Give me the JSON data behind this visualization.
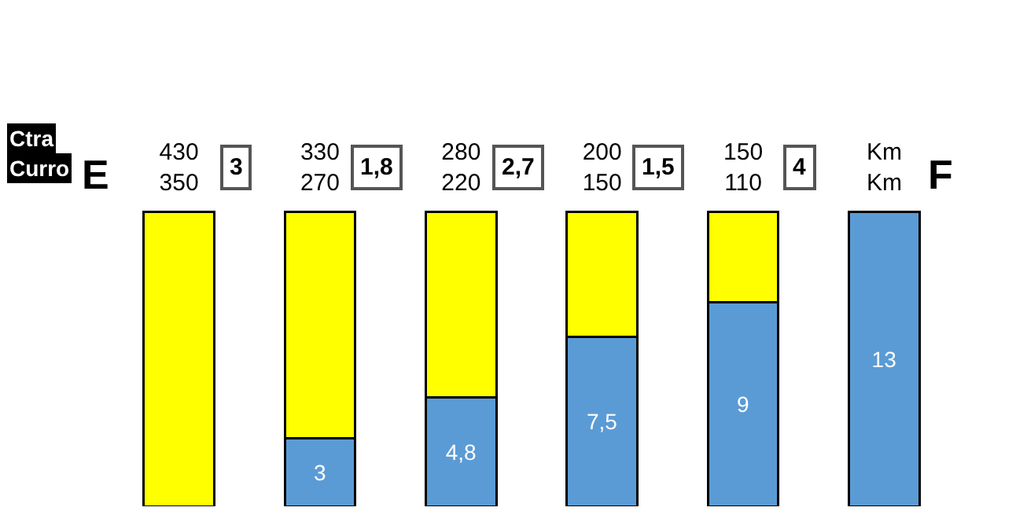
{
  "chart_data": {
    "type": "bar",
    "stacked": true,
    "data_labels": false,
    "legend": false,
    "categories": [
      "430\n350",
      "330\n270",
      "280\n220",
      "200\n150",
      "150\n110",
      "Km\nKm"
    ],
    "series": [
      {
        "color": "#5b9bd5",
        "values": [
          null,
          3,
          4.8,
          7.5,
          9,
          13
        ],
        "value_labels": [
          null,
          "3",
          "4,8",
          "7,5",
          "9",
          "13"
        ]
      },
      {
        "color": "#ffff00",
        "values": [
          13,
          10,
          8.2,
          5.5,
          4,
          null
        ]
      }
    ],
    "annotations": [
      "Ctra",
      "Curro",
      "E",
      "3",
      "1,8",
      "2,7",
      "1,5",
      "4",
      "F"
    ]
  }
}
